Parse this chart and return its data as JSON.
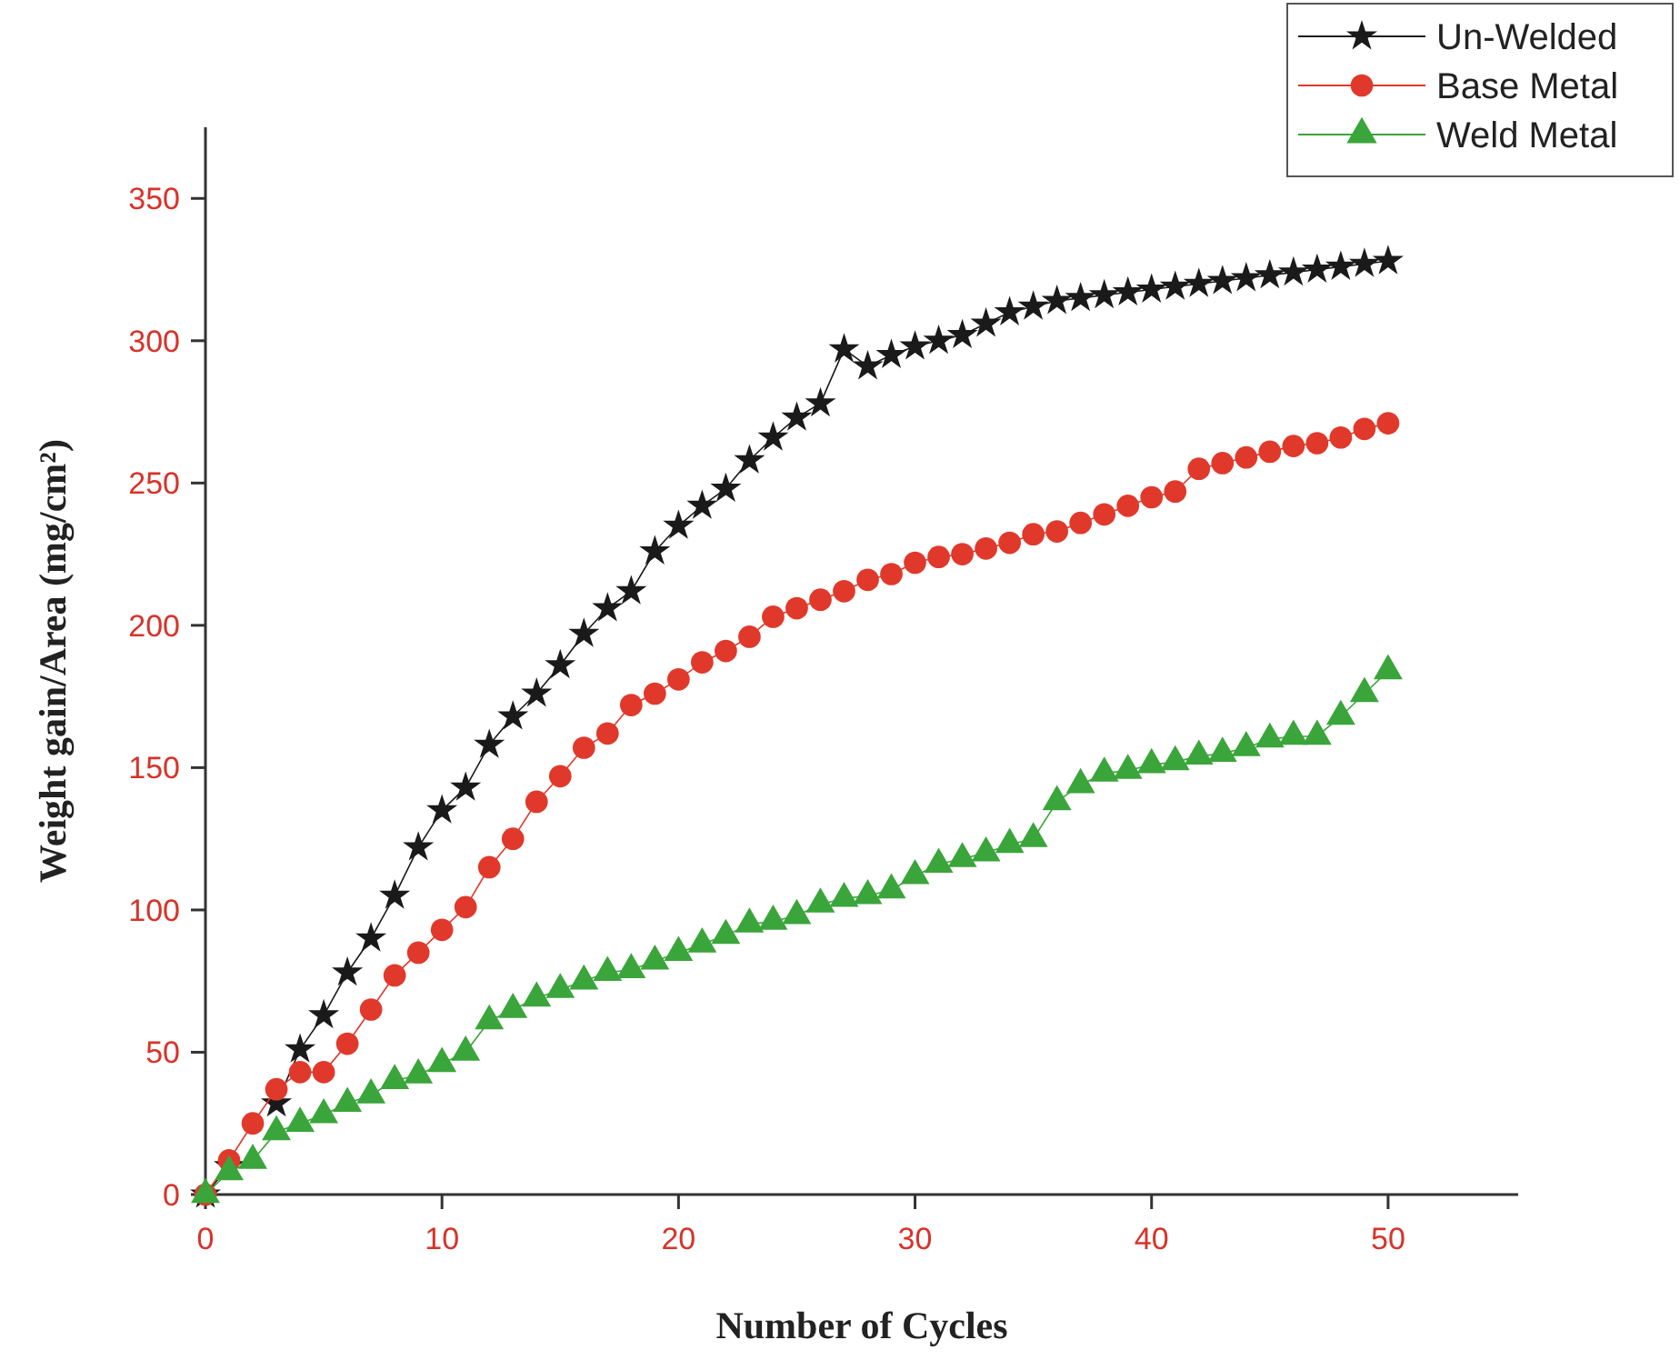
{
  "chart_data": {
    "type": "line",
    "xlabel": "Number of Cycles",
    "ylabel": "Weight gain/Area (mg/cm²)",
    "x": [
      0,
      1,
      2,
      3,
      4,
      5,
      6,
      7,
      8,
      9,
      10,
      11,
      12,
      13,
      14,
      15,
      16,
      17,
      18,
      19,
      20,
      21,
      22,
      23,
      24,
      25,
      26,
      27,
      28,
      29,
      30,
      31,
      32,
      33,
      34,
      35,
      36,
      37,
      38,
      39,
      40,
      41,
      42,
      43,
      44,
      45,
      46,
      47,
      48,
      49,
      50
    ],
    "series": [
      {
        "name": "Un-Welded",
        "color": "#1a1a1a",
        "marker": "star",
        "values": [
          0,
          10,
          null,
          32,
          51,
          63,
          78,
          90,
          105,
          122,
          135,
          143,
          158,
          168,
          176,
          186,
          197,
          206,
          212,
          226,
          235,
          242,
          248,
          258,
          266,
          273,
          278,
          297,
          291,
          295,
          298,
          300,
          302,
          306,
          310,
          312,
          314,
          315,
          316,
          317,
          318,
          319,
          320,
          321,
          322,
          323,
          324,
          325,
          326,
          327,
          328
        ]
      },
      {
        "name": "Base Metal",
        "color": "#e0392b",
        "marker": "circle",
        "values": [
          0,
          12,
          25,
          37,
          43,
          43,
          53,
          65,
          77,
          85,
          93,
          101,
          115,
          125,
          138,
          147,
          157,
          162,
          172,
          176,
          181,
          187,
          191,
          196,
          203,
          206,
          209,
          212,
          216,
          218,
          222,
          224,
          225,
          227,
          229,
          232,
          233,
          236,
          239,
          242,
          245,
          247,
          255,
          257,
          259,
          261,
          263,
          264,
          266,
          269,
          271
        ]
      },
      {
        "name": "Weld Metal",
        "color": "#3aa53a",
        "marker": "triangle",
        "values": [
          0,
          8,
          12,
          22,
          25,
          28,
          32,
          35,
          40,
          42,
          46,
          50,
          61,
          65,
          69,
          72,
          75,
          78,
          79,
          82,
          85,
          88,
          91,
          95,
          96,
          98,
          102,
          104,
          105,
          107,
          112,
          116,
          118,
          120,
          123,
          125,
          138,
          144,
          148,
          149,
          151,
          152,
          154,
          155,
          157,
          160,
          161,
          161,
          168,
          176,
          184
        ]
      }
    ],
    "xlim": [
      0,
      55.5
    ],
    "xticks": [
      0,
      10,
      20,
      30,
      40,
      50
    ],
    "ylim": [
      0,
      375
    ],
    "yticks": [
      0,
      50,
      100,
      150,
      200,
      250,
      300,
      350
    ],
    "grid": false,
    "legend": "top right",
    "line_style": "solid"
  }
}
